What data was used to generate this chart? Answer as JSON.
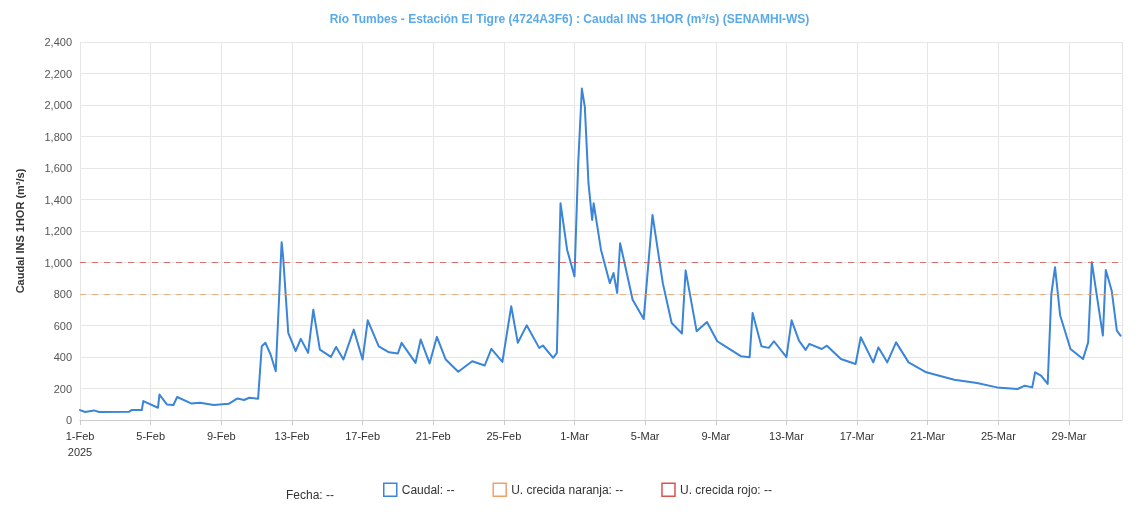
{
  "chart_data": {
    "type": "line",
    "title": "Río Tumbes - Estación El Tigre (4724A3F6) : Caudal INS 1HOR (m³/s) (SENAMHI-WS)",
    "ylabel": "Caudal INS 1HOR (m³/s)",
    "annotations": [
      "Fecha: --"
    ],
    "xlim": [
      "2025-02-01T00:00",
      "2025-04-01T00:00"
    ],
    "xticks": [
      {
        "value": "2025-02-01T00:00",
        "label": "1-Feb\n2025"
      },
      {
        "value": "2025-02-05T00:00",
        "label": "5-Feb"
      },
      {
        "value": "2025-02-09T00:00",
        "label": "9-Feb"
      },
      {
        "value": "2025-02-13T00:00",
        "label": "13-Feb"
      },
      {
        "value": "2025-02-17T00:00",
        "label": "17-Feb"
      },
      {
        "value": "2025-02-21T00:00",
        "label": "21-Feb"
      },
      {
        "value": "2025-02-25T00:00",
        "label": "25-Feb"
      },
      {
        "value": "2025-03-01T00:00",
        "label": "1-Mar"
      },
      {
        "value": "2025-03-05T00:00",
        "label": "5-Mar"
      },
      {
        "value": "2025-03-09T00:00",
        "label": "9-Mar"
      },
      {
        "value": "2025-03-13T00:00",
        "label": "13-Mar"
      },
      {
        "value": "2025-03-17T00:00",
        "label": "17-Mar"
      },
      {
        "value": "2025-03-21T00:00",
        "label": "21-Mar"
      },
      {
        "value": "2025-03-25T00:00",
        "label": "25-Mar"
      },
      {
        "value": "2025-03-29T00:00",
        "label": "29-Mar"
      }
    ],
    "ylim": [
      0,
      2400
    ],
    "yticks": [
      0,
      200,
      400,
      600,
      800,
      {
        "value": 1000,
        "label": "1,000"
      },
      {
        "value": 1200,
        "label": "1,200"
      },
      {
        "value": 1400,
        "label": "1,400"
      },
      {
        "value": 1600,
        "label": "1,600"
      },
      {
        "value": 1800,
        "label": "1,800"
      },
      {
        "value": 2000,
        "label": "2,000"
      },
      {
        "value": 2200,
        "label": "2,200"
      },
      {
        "value": 2400,
        "label": "2,400"
      }
    ],
    "grid": true,
    "legend": "bottom",
    "marker": "none",
    "line_style": "solid",
    "ref_lines": [
      {
        "axis": "y",
        "value": 800,
        "label": "U. crecida naranja: --",
        "color": "#f2a06a",
        "line_style": "dashed"
      },
      {
        "axis": "y",
        "value": 1000,
        "label": "U. crecida rojo: --",
        "color": "#d9534f",
        "line_style": "dashed"
      }
    ],
    "series": [
      {
        "name": "Caudal: --",
        "color": "#3a85d8",
        "x": [
          "2025-02-01T00:00",
          "2025-02-01T07:00",
          "2025-02-01T19:00",
          "2025-02-02T02:00",
          "2025-02-03T19:00",
          "2025-02-03T22:00",
          "2025-02-04T12:00",
          "2025-02-04T14:00",
          "2025-02-05T10:00",
          "2025-02-05T12:00",
          "2025-02-05T22:00",
          "2025-02-06T07:00",
          "2025-02-06T12:00",
          "2025-02-07T07:00",
          "2025-02-07T19:00",
          "2025-02-08T14:00",
          "2025-02-09T10:00",
          "2025-02-09T22:00",
          "2025-02-10T07:00",
          "2025-02-10T14:00",
          "2025-02-11T02:00",
          "2025-02-11T07:00",
          "2025-02-11T12:00",
          "2025-02-11T19:00",
          "2025-02-12T02:00",
          "2025-02-12T10:00",
          "2025-02-12T12:00",
          "2025-02-12T19:00",
          "2025-02-13T05:00",
          "2025-02-13T12:00",
          "2025-02-13T22:00",
          "2025-02-14T05:00",
          "2025-02-14T14:00",
          "2025-02-15T05:00",
          "2025-02-15T12:00",
          "2025-02-15T22:00",
          "2025-02-16T12:00",
          "2025-02-17T00:00",
          "2025-02-17T07:00",
          "2025-02-17T22:00",
          "2025-02-18T12:00",
          "2025-02-19T00:00",
          "2025-02-19T05:00",
          "2025-02-20T00:00",
          "2025-02-20T07:00",
          "2025-02-20T19:00",
          "2025-02-21T05:00",
          "2025-02-21T17:00",
          "2025-02-22T10:00",
          "2025-02-23T05:00",
          "2025-02-23T22:00",
          "2025-02-24T07:00",
          "2025-02-24T22:00",
          "2025-02-25T10:00",
          "2025-02-25T19:00",
          "2025-02-26T07:00",
          "2025-02-27T00:00",
          "2025-02-27T05:00",
          "2025-02-27T19:00",
          "2025-02-28T00:00",
          "2025-02-28T05:00",
          "2025-02-28T14:00",
          "2025-03-01T00:00",
          "2025-03-01T05:00",
          "2025-03-01T10:00",
          "2025-03-01T14:00",
          "2025-03-01T19:00",
          "2025-03-02T00:00",
          "2025-03-02T02:00",
          "2025-03-02T12:00",
          "2025-03-03T00:00",
          "2025-03-03T05:00",
          "2025-03-03T10:00",
          "2025-03-03T14:00",
          "2025-03-03T22:00",
          "2025-03-04T07:00",
          "2025-03-04T22:00",
          "2025-03-05T10:00",
          "2025-03-06T00:00",
          "2025-03-06T12:00",
          "2025-03-07T02:00",
          "2025-03-07T07:00",
          "2025-03-07T22:00",
          "2025-03-08T12:00",
          "2025-03-09T02:00",
          "2025-03-09T14:00",
          "2025-03-10T10:00",
          "2025-03-10T22:00",
          "2025-03-11T02:00",
          "2025-03-11T14:00",
          "2025-03-12T00:00",
          "2025-03-12T07:00",
          "2025-03-13T00:00",
          "2025-03-13T07:00",
          "2025-03-13T17:00",
          "2025-03-14T02:00",
          "2025-03-14T07:00",
          "2025-03-15T00:00",
          "2025-03-15T07:00",
          "2025-03-16T02:00",
          "2025-03-16T22:00",
          "2025-03-17T05:00",
          "2025-03-17T22:00",
          "2025-03-18T05:00",
          "2025-03-18T17:00",
          "2025-03-19T05:00",
          "2025-03-19T22:00",
          "2025-03-20T22:00",
          "2025-03-22T12:00",
          "2025-03-23T19:00",
          "2025-03-24T22:00",
          "2025-03-26T02:00",
          "2025-03-26T12:00",
          "2025-03-26T22:00",
          "2025-03-27T02:00",
          "2025-03-27T10:00",
          "2025-03-27T19:00",
          "2025-03-28T00:00",
          "2025-03-28T05:00",
          "2025-03-28T12:00",
          "2025-03-29T02:00",
          "2025-03-29T19:00",
          "2025-03-30T02:00",
          "2025-03-30T07:00",
          "2025-03-30T22:00",
          "2025-03-31T02:00",
          "2025-03-31T10:00",
          "2025-03-31T17:00",
          "2025-03-31T22:00"
        ],
        "values": [
          63,
          51,
          61,
          51,
          53,
          63,
          63,
          120,
          78,
          162,
          99,
          95,
          146,
          105,
          110,
          95,
          103,
          137,
          127,
          141,
          135,
          468,
          490,
          416,
          310,
          1129,
          1038,
          553,
          437,
          515,
          426,
          700,
          447,
          401,
          464,
          384,
          574,
          384,
          633,
          468,
          430,
          422,
          490,
          363,
          511,
          359,
          528,
          384,
          306,
          373,
          346,
          452,
          369,
          722,
          490,
          601,
          458,
          473,
          395,
          426,
          1376,
          1080,
          912,
          1629,
          2104,
          1988,
          1502,
          1270,
          1376,
          1080,
          869,
          933,
          806,
          1123,
          954,
          764,
          641,
          1302,
          869,
          616,
          549,
          950,
          563,
          622,
          500,
          464,
          405,
          399,
          679,
          468,
          458,
          500,
          399,
          633,
          504,
          445,
          483,
          451,
          472,
          387,
          356,
          525,
          366,
          461,
          366,
          493,
          366,
          303,
          256,
          235,
          207,
          197,
          218,
          207,
          303,
          282,
          229,
          800,
          970,
          663,
          451,
          387,
          493,
          1001,
          536,
          953,
          821,
          567,
          536
        ]
      }
    ]
  }
}
